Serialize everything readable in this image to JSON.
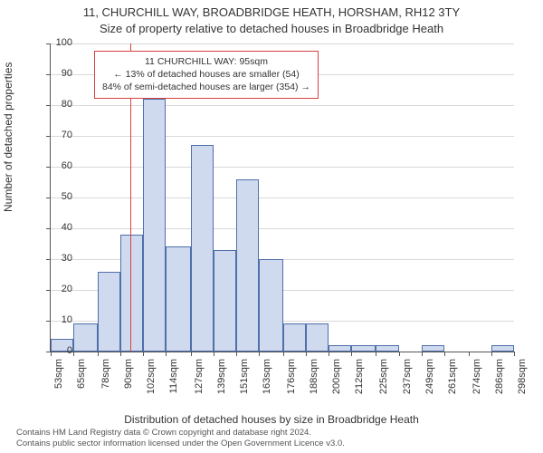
{
  "title_line1": "11, CHURCHILL WAY, BROADBRIDGE HEATH, HORSHAM, RH12 3TY",
  "title_line2": "Size of property relative to detached houses in Broadbridge Heath",
  "ylabel": "Number of detached properties",
  "xlabel": "Distribution of detached houses by size in Broadbridge Heath",
  "footer_line1": "Contains HM Land Registry data © Crown copyright and database right 2024.",
  "footer_line2": "Contains public sector information licensed under the Open Government Licence v3.0.",
  "chart": {
    "type": "histogram",
    "ylim": [
      0,
      100
    ],
    "ytick_step": 10,
    "grid_color": "#d9d9d9",
    "background_color": "#ffffff",
    "bar_fill": "#cfdaee",
    "bar_stroke": "#4f6faa",
    "refline_color": "#d94141",
    "annot_border": "#d94141",
    "annot_bg": "#ffffff",
    "annot_lines": [
      "11 CHURCHILL WAY: 95sqm",
      "← 13% of detached houses are smaller (54)",
      "84% of semi-detached houses are larger (354) →"
    ],
    "ref_x_value": 95,
    "xticks": [
      53,
      65,
      78,
      90,
      102,
      114,
      127,
      139,
      151,
      163,
      176,
      188,
      200,
      212,
      225,
      237,
      249,
      261,
      274,
      286,
      298
    ],
    "xtick_suffix": "sqm",
    "bars": [
      {
        "x0": 53,
        "x1": 65,
        "y": 4
      },
      {
        "x0": 65,
        "x1": 78,
        "y": 9
      },
      {
        "x0": 78,
        "x1": 90,
        "y": 26
      },
      {
        "x0": 90,
        "x1": 102,
        "y": 38
      },
      {
        "x0": 102,
        "x1": 114,
        "y": 82
      },
      {
        "x0": 114,
        "x1": 127,
        "y": 34
      },
      {
        "x0": 127,
        "x1": 139,
        "y": 67
      },
      {
        "x0": 139,
        "x1": 151,
        "y": 33
      },
      {
        "x0": 151,
        "x1": 163,
        "y": 56
      },
      {
        "x0": 163,
        "x1": 176,
        "y": 30
      },
      {
        "x0": 176,
        "x1": 188,
        "y": 9
      },
      {
        "x0": 188,
        "x1": 200,
        "y": 9
      },
      {
        "x0": 200,
        "x1": 212,
        "y": 2
      },
      {
        "x0": 212,
        "x1": 225,
        "y": 2
      },
      {
        "x0": 225,
        "x1": 237,
        "y": 2
      },
      {
        "x0": 237,
        "x1": 249,
        "y": 0
      },
      {
        "x0": 249,
        "x1": 261,
        "y": 2
      },
      {
        "x0": 261,
        "x1": 274,
        "y": 0
      },
      {
        "x0": 274,
        "x1": 286,
        "y": 0
      },
      {
        "x0": 286,
        "x1": 298,
        "y": 2
      }
    ]
  }
}
